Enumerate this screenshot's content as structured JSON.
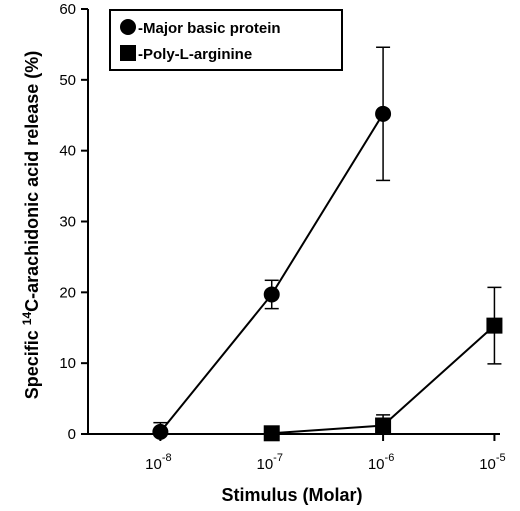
{
  "chart_data": {
    "type": "line",
    "x_scale": "log",
    "x": [
      "1e-8",
      "1e-7",
      "1e-6",
      "1e-5"
    ],
    "x_tick_labels": [
      {
        "base": "10",
        "exp": "-8"
      },
      {
        "base": "10",
        "exp": "-7"
      },
      {
        "base": "10",
        "exp": "-6"
      },
      {
        "base": "10",
        "exp": "-5"
      }
    ],
    "xlabel": "Stimulus (Molar)",
    "ylabel": {
      "prefix": "Specific ",
      "sup": "14",
      "suffix": "C-arachidonic acid release (%)"
    },
    "ylim": [
      0,
      60
    ],
    "y_ticks": [
      "0",
      "10",
      "20",
      "30",
      "40",
      "50",
      "60"
    ],
    "legend_position": "top-left",
    "grid": false,
    "series": [
      {
        "name": "-Major basic protein",
        "marker": "circle",
        "color": "#000000",
        "points": [
          {
            "x": 1e-08,
            "y": 0.3,
            "err": 1.3
          },
          {
            "x": 1e-07,
            "y": 19.7,
            "err": 2.0
          },
          {
            "x": 1e-06,
            "y": 45.2,
            "err": 9.4
          }
        ]
      },
      {
        "name": "-Poly-L-arginine",
        "marker": "square",
        "color": "#000000",
        "points": [
          {
            "x": 1e-07,
            "y": 0.1,
            "err": 0
          },
          {
            "x": 1e-06,
            "y": 1.2,
            "err": 1.5
          },
          {
            "x": 1e-05,
            "y": 15.3,
            "err": 5.4
          }
        ]
      }
    ]
  }
}
